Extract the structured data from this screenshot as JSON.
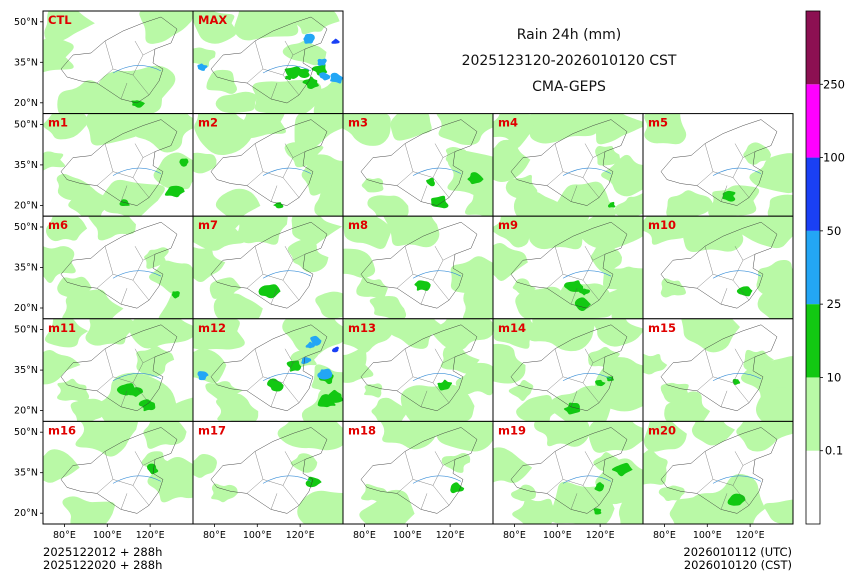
{
  "chart_data": {
    "type": "heatmap",
    "title": "Rain 24h (mm)",
    "period": "2025123120-2026010120 CST",
    "model": "CMA-GEPS",
    "map_extent": {
      "lon": [
        70,
        140
      ],
      "lat": [
        16,
        54
      ]
    },
    "lat_ticks": [
      "50°N",
      "35°N",
      "20°N"
    ],
    "lon_ticks": [
      "80°E",
      "100°E",
      "120°E"
    ],
    "colorbar": {
      "levels": [
        "0.1",
        "10",
        "25",
        "50",
        "100",
        "250"
      ],
      "colors": [
        "#ffffff",
        "#b9f9a6",
        "#12c812",
        "#23a6f5",
        "#1a40f5",
        "#ff00ff",
        "#8c1052"
      ]
    },
    "members": [
      {
        "label": "CTL",
        "row": 0,
        "col": 0,
        "intensity": "light"
      },
      {
        "label": "MAX",
        "row": 0,
        "col": 1,
        "intensity": "heavy"
      },
      {
        "label": "m1",
        "row": 1,
        "col": 0,
        "intensity": "moderate"
      },
      {
        "label": "m2",
        "row": 1,
        "col": 1,
        "intensity": "light"
      },
      {
        "label": "m3",
        "row": 1,
        "col": 2,
        "intensity": "moderate"
      },
      {
        "label": "m4",
        "row": 1,
        "col": 3,
        "intensity": "light"
      },
      {
        "label": "m5",
        "row": 1,
        "col": 4,
        "intensity": "light"
      },
      {
        "label": "m6",
        "row": 2,
        "col": 0,
        "intensity": "light"
      },
      {
        "label": "m7",
        "row": 2,
        "col": 1,
        "intensity": "light"
      },
      {
        "label": "m8",
        "row": 2,
        "col": 2,
        "intensity": "light"
      },
      {
        "label": "m9",
        "row": 2,
        "col": 3,
        "intensity": "moderate"
      },
      {
        "label": "m10",
        "row": 2,
        "col": 4,
        "intensity": "light"
      },
      {
        "label": "m11",
        "row": 3,
        "col": 0,
        "intensity": "moderate"
      },
      {
        "label": "m12",
        "row": 3,
        "col": 1,
        "intensity": "heavy"
      },
      {
        "label": "m13",
        "row": 3,
        "col": 2,
        "intensity": "light"
      },
      {
        "label": "m14",
        "row": 3,
        "col": 3,
        "intensity": "moderate"
      },
      {
        "label": "m15",
        "row": 3,
        "col": 4,
        "intensity": "light"
      },
      {
        "label": "m16",
        "row": 4,
        "col": 0,
        "intensity": "light"
      },
      {
        "label": "m17",
        "row": 4,
        "col": 1,
        "intensity": "light"
      },
      {
        "label": "m18",
        "row": 4,
        "col": 2,
        "intensity": "light"
      },
      {
        "label": "m19",
        "row": 4,
        "col": 3,
        "intensity": "moderate"
      },
      {
        "label": "m20",
        "row": 4,
        "col": 4,
        "intensity": "light"
      }
    ]
  },
  "footer": {
    "init_line1": "2025122012 + 288h",
    "init_line2": "2025122020 + 288h",
    "valid_line1": "2026010112 (UTC)",
    "valid_line2": "2026010120 (CST)"
  }
}
